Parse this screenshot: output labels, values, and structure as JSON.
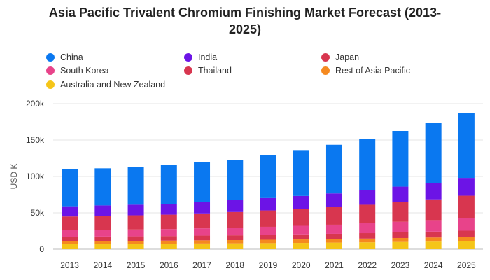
{
  "title_line1": "Asia Pacific Trivalent Chromium Finishing Market Forecast (2013-",
  "title_line2": "2025)",
  "chart_data": {
    "type": "bar",
    "stacked": true,
    "title": "Asia Pacific Trivalent Chromium Finishing Market Forecast (2013-2025)",
    "xlabel": "",
    "ylabel": "USD K",
    "ylim": [
      0,
      200000
    ],
    "yticks": [
      0,
      50000,
      100000,
      150000,
      200000
    ],
    "ytick_labels": [
      "0",
      "50k",
      "100k",
      "150k",
      "200k"
    ],
    "grid": true,
    "legend_position": "top",
    "categories": [
      "2013",
      "2014",
      "2015",
      "2016",
      "2017",
      "2018",
      "2019",
      "2020",
      "2021",
      "2022",
      "2023",
      "2024",
      "2025"
    ],
    "series": [
      {
        "name": "Australia and New Zealand",
        "color": "#f5c518",
        "values": [
          7000,
          7200,
          7300,
          7500,
          7800,
          8000,
          8300,
          8600,
          9000,
          9400,
          9900,
          10400,
          11000
        ]
      },
      {
        "name": "Rest of Asia Pacific",
        "color": "#f5891f",
        "values": [
          4000,
          4100,
          4200,
          4300,
          4400,
          4500,
          4700,
          4800,
          5000,
          5200,
          5500,
          5700,
          6000
        ]
      },
      {
        "name": "Thailand",
        "color": "#d8364f",
        "values": [
          6000,
          6100,
          6200,
          6300,
          6500,
          6600,
          6800,
          7000,
          7200,
          7500,
          7800,
          8100,
          8500
        ]
      },
      {
        "name": "South Korea",
        "color": "#e8438a",
        "values": [
          9000,
          9200,
          9400,
          9600,
          10000,
          10500,
          11000,
          11800,
          12500,
          13500,
          14500,
          15800,
          17500
        ]
      },
      {
        "name": "Japan",
        "color": "#d8364f",
        "values": [
          19000,
          19200,
          19500,
          19800,
          20500,
          21500,
          22500,
          23500,
          24500,
          25500,
          27000,
          28500,
          30500
        ]
      },
      {
        "name": "India",
        "color": "#6c14e6",
        "values": [
          14000,
          14400,
          14600,
          15000,
          15800,
          16400,
          17000,
          17500,
          18500,
          20000,
          21300,
          22500,
          24500
        ]
      },
      {
        "name": "China",
        "color": "#0a78f0",
        "values": [
          51000,
          51000,
          51800,
          53000,
          54500,
          55500,
          59200,
          63000,
          66800,
          70400,
          76500,
          83000,
          89000
        ]
      }
    ]
  },
  "legend": [
    {
      "label": "China",
      "color": "#0a78f0"
    },
    {
      "label": "India",
      "color": "#6c14e6"
    },
    {
      "label": "Japan",
      "color": "#d8364f"
    },
    {
      "label": "South Korea",
      "color": "#e8438a"
    },
    {
      "label": "Thailand",
      "color": "#d8364f"
    },
    {
      "label": "Rest of Asia Pacific",
      "color": "#f5891f"
    },
    {
      "label": "Australia and New Zealand",
      "color": "#f5c518"
    }
  ]
}
